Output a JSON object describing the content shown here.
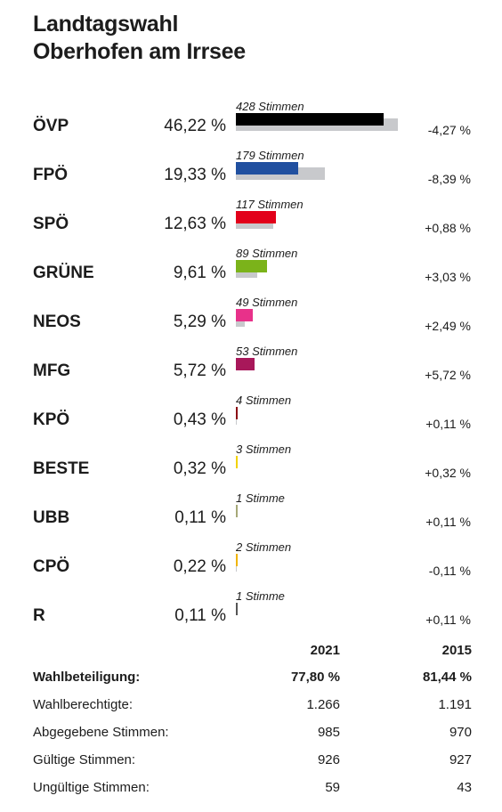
{
  "header": {
    "title_line1": "Landtagswahl",
    "title_line2": "Oberhofen am Irrsee"
  },
  "chart_data": {
    "type": "bar",
    "parties": [
      {
        "name": "ÖVP",
        "percent": "46,22 %",
        "votes": 428,
        "votes_label": "428 Stimmen",
        "prev_percent": 50.49,
        "diff": "-4,27 %",
        "color": "#000000"
      },
      {
        "name": "FPÖ",
        "percent": "19,33 %",
        "votes": 179,
        "votes_label": "179 Stimmen",
        "prev_percent": 27.72,
        "diff": "-8,39 %",
        "color": "#2150a0"
      },
      {
        "name": "SPÖ",
        "percent": "12,63 %",
        "votes": 117,
        "votes_label": "117 Stimmen",
        "prev_percent": 11.75,
        "diff": "+0,88 %",
        "color": "#e2001a"
      },
      {
        "name": "GRÜNE",
        "percent": "9,61 %",
        "votes": 89,
        "votes_label": "89 Stimmen",
        "prev_percent": 6.58,
        "diff": "+3,03 %",
        "color": "#7bb31a"
      },
      {
        "name": "NEOS",
        "percent": "5,29 %",
        "votes": 49,
        "votes_label": "49 Stimmen",
        "prev_percent": 2.8,
        "diff": "+2,49 %",
        "color": "#e8318a"
      },
      {
        "name": "MFG",
        "percent": "5,72 %",
        "votes": 53,
        "votes_label": "53 Stimmen",
        "prev_percent": 0,
        "diff": "+5,72 %",
        "color": "#a8185a"
      },
      {
        "name": "KPÖ",
        "percent": "0,43 %",
        "votes": 4,
        "votes_label": "4 Stimmen",
        "prev_percent": 0.32,
        "diff": "+0,11 %",
        "color": "#8b0a14"
      },
      {
        "name": "BESTE",
        "percent": "0,32 %",
        "votes": 3,
        "votes_label": "3 Stimmen",
        "prev_percent": 0,
        "diff": "+0,32 %",
        "color": "#f2d200"
      },
      {
        "name": "UBB",
        "percent": "0,11 %",
        "votes": 1,
        "votes_label": "1 Stimme",
        "prev_percent": 0,
        "diff": "+0,11 %",
        "color": "#a6a878"
      },
      {
        "name": "CPÖ",
        "percent": "0,22 %",
        "votes": 2,
        "votes_label": "2 Stimmen",
        "prev_percent": 0.33,
        "diff": "-0,11 %",
        "color": "#f0b400"
      },
      {
        "name": "R",
        "percent": "0,11 %",
        "votes": 1,
        "votes_label": "1 Stimme",
        "prev_percent": 0,
        "diff": "+0,11 %",
        "color": "#555555"
      }
    ],
    "prev_bar_color": "#c8c9cc"
  },
  "stats": {
    "year_current": "2021",
    "year_previous": "2015",
    "rows": [
      {
        "label": "Wahlbeteiligung:",
        "current": "77,80 %",
        "previous": "81,44 %",
        "bold": true
      },
      {
        "label": "Wahlberechtigte:",
        "current": "1.266",
        "previous": "1.191"
      },
      {
        "label": "Abgegebene Stimmen:",
        "current": "985",
        "previous": "970"
      },
      {
        "label": "Gültige Stimmen:",
        "current": "926",
        "previous": "927"
      },
      {
        "label": "Ungültige Stimmen:",
        "current": "59",
        "previous": "43"
      }
    ]
  }
}
